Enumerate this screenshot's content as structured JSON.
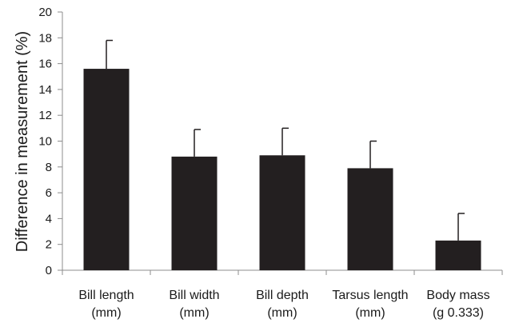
{
  "chart_data": {
    "type": "bar",
    "title": "",
    "xlabel": "",
    "ylabel": "Difference in measurement (%)",
    "ylim": [
      0,
      20
    ],
    "yticks": [
      0,
      2,
      4,
      6,
      8,
      10,
      12,
      14,
      16,
      18,
      20
    ],
    "categories": [
      [
        "Bill length",
        "(mm)"
      ],
      [
        "Bill width",
        "(mm)"
      ],
      [
        "Bill depth",
        "(mm)"
      ],
      [
        "Tarsus length",
        "(mm)"
      ],
      [
        "Body mass",
        "(g 0.333)"
      ]
    ],
    "values": [
      15.6,
      8.8,
      8.9,
      7.9,
      2.3
    ],
    "error_upper": [
      2.2,
      2.1,
      2.1,
      2.1,
      2.1
    ],
    "grid": false,
    "legend": "none",
    "colors": {
      "bar": "#231f20",
      "axis": "#8c8c8c",
      "error": "#231f20"
    }
  }
}
